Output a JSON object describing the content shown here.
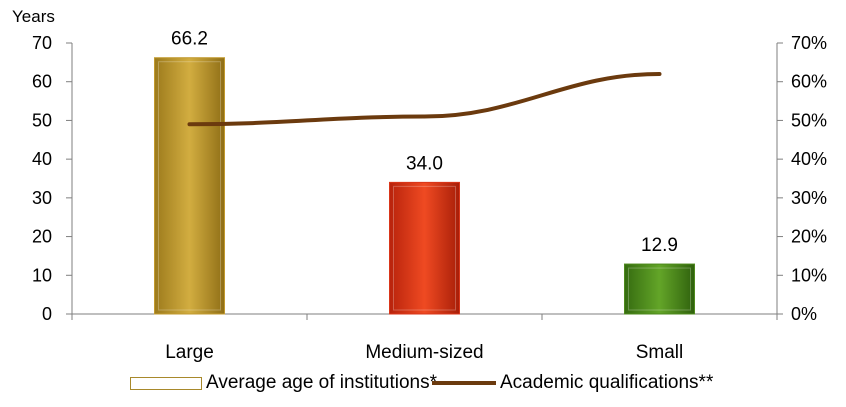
{
  "chart_data": {
    "type": "bar",
    "categories": [
      "Large",
      "Medium-sized",
      "Small"
    ],
    "series": [
      {
        "name": "Average age of institutions*",
        "type": "bar",
        "axis": "left",
        "values": [
          66.2,
          34.0,
          12.9
        ],
        "value_labels": [
          "66.2",
          "34.0",
          "12.9"
        ],
        "colors": [
          "#c29a2e",
          "#d9361a",
          "#4e8a1c"
        ]
      },
      {
        "name": "Academic qualifications**",
        "type": "line",
        "axis": "right",
        "values": [
          49,
          51,
          62
        ],
        "color": "#6b3a0e"
      }
    ],
    "y_left": {
      "unit_label": "Years",
      "min": 0,
      "max": 70,
      "step": 10,
      "ticks": [
        "0",
        "10",
        "20",
        "30",
        "40",
        "50",
        "60",
        "70"
      ]
    },
    "y_right": {
      "min": 0,
      "max": 70,
      "step": 10,
      "ticks": [
        "0%",
        "10%",
        "20%",
        "30%",
        "40%",
        "50%",
        "60%",
        "70%"
      ]
    },
    "grid": false,
    "legend_position": "bottom"
  }
}
